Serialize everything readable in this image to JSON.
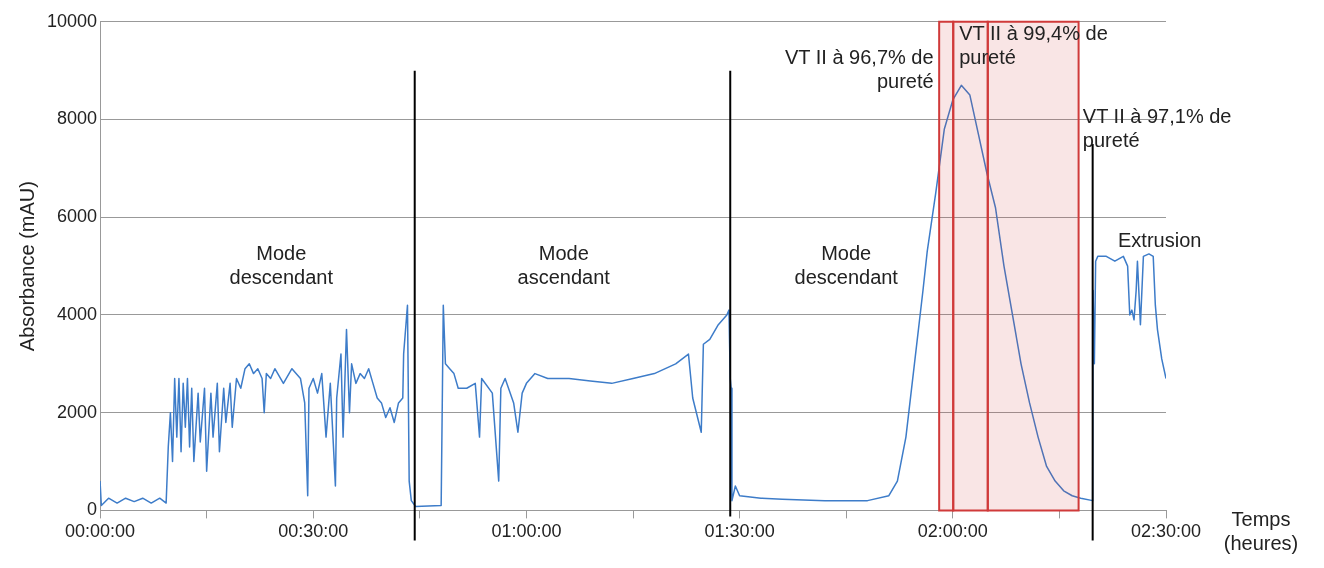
{
  "chart_data": {
    "type": "line",
    "xlabel": "Temps\n(heures)",
    "ylabel": "Absorbance (mAU)",
    "x": [
      0,
      0.003,
      0.02,
      0.04,
      0.06,
      0.08,
      0.1,
      0.12,
      0.14,
      0.155,
      0.16,
      0.165,
      0.17,
      0.175,
      0.18,
      0.185,
      0.19,
      0.195,
      0.2,
      0.205,
      0.21,
      0.215,
      0.22,
      0.23,
      0.235,
      0.245,
      0.25,
      0.26,
      0.265,
      0.275,
      0.28,
      0.29,
      0.295,
      0.305,
      0.31,
      0.32,
      0.33,
      0.34,
      0.35,
      0.36,
      0.37,
      0.38,
      0.385,
      0.39,
      0.4,
      0.41,
      0.43,
      0.45,
      0.47,
      0.48,
      0.487,
      0.49,
      0.5,
      0.51,
      0.52,
      0.53,
      0.54,
      0.552,
      0.555,
      0.565,
      0.57,
      0.578,
      0.585,
      0.59,
      0.6,
      0.61,
      0.62,
      0.63,
      0.64,
      0.65,
      0.66,
      0.67,
      0.68,
      0.69,
      0.7,
      0.71,
      0.712,
      0.721,
      0.725,
      0.73,
      0.74,
      0.8,
      0.803,
      0.805,
      0.81,
      0.82,
      0.83,
      0.84,
      0.86,
      0.88,
      0.89,
      0.895,
      0.92,
      0.935,
      0.94,
      0.95,
      0.97,
      0.98,
      0.99,
      1,
      1.02,
      1.05,
      1.1,
      1.15,
      1.2,
      1.25,
      1.3,
      1.35,
      1.38,
      1.39,
      1.41,
      1.415,
      1.43,
      1.45,
      1.47,
      1.475,
      1.478,
      1.48,
      1.482,
      1.49,
      1.5,
      1.55,
      1.6,
      1.7,
      1.8,
      1.85,
      1.87,
      1.89,
      1.91,
      1.93,
      1.94,
      1.96,
      1.98,
      2,
      2.02,
      2.04,
      2.06,
      2.08,
      2.1,
      2.12,
      2.14,
      2.16,
      2.18,
      2.2,
      2.22,
      2.24,
      2.26,
      2.28,
      2.3,
      2.328,
      2.329,
      2.332,
      2.335,
      2.34,
      2.36,
      2.38,
      2.4,
      2.41,
      2.415,
      2.42,
      2.425,
      2.43,
      2.433,
      2.44,
      2.447,
      2.46,
      2.47,
      2.475,
      2.48,
      2.49,
      2.5
    ],
    "series": [
      {
        "color": "#3d7cc9",
        "values": [
          600,
          100,
          250,
          150,
          250,
          180,
          250,
          150,
          250,
          150,
          1300,
          2000,
          1000,
          2700,
          1500,
          2700,
          1200,
          2600,
          1700,
          2700,
          1300,
          2500,
          1000,
          2400,
          1400,
          2500,
          800,
          2400,
          1500,
          2600,
          1200,
          2500,
          1800,
          2600,
          1700,
          2700,
          2500,
          2900,
          3000,
          2800,
          2900,
          2700,
          2000,
          2800,
          2700,
          2900,
          2600,
          2900,
          2700,
          2200,
          300,
          2500,
          2700,
          2400,
          2800,
          1500,
          2600,
          500,
          2300,
          3200,
          1500,
          3700,
          2000,
          3000,
          2600,
          2800,
          2700,
          2900,
          2600,
          2300,
          2200,
          1900,
          2100,
          1800,
          2200,
          2300,
          3200,
          4200,
          600,
          200,
          80,
          100,
          2500,
          4200,
          3000,
          2900,
          2800,
          2500,
          2500,
          2600,
          1500,
          2700,
          2400,
          600,
          2500,
          2700,
          2200,
          1600,
          2400,
          2600,
          2800,
          2700,
          2700,
          2650,
          2600,
          2700,
          2800,
          3000,
          3200,
          2300,
          1600,
          3400,
          3500,
          3800,
          4000,
          4100,
          2700,
          2500,
          200,
          500,
          300,
          250,
          230,
          200,
          200,
          300,
          600,
          1500,
          3000,
          4500,
          5300,
          6500,
          7800,
          8400,
          8700,
          8500,
          7700,
          6900,
          6200,
          5000,
          4000,
          3000,
          2200,
          1500,
          900,
          600,
          400,
          300,
          250,
          200,
          4500,
          3000,
          5100,
          5200,
          5200,
          5100,
          5200,
          5000,
          4000,
          4100,
          3900,
          4500,
          5100,
          3800,
          5200,
          5250,
          5200,
          4200,
          3700,
          3100,
          2700
        ]
      }
    ],
    "xlim": [
      0,
      2.5
    ],
    "xticks": [
      {
        "value": 0,
        "label": "00:00:00"
      },
      {
        "value": 0.25,
        "label": null
      },
      {
        "value": 0.5,
        "label": "00:30:00"
      },
      {
        "value": 0.75,
        "label": null
      },
      {
        "value": 1,
        "label": "01:00:00"
      },
      {
        "value": 1.25,
        "label": null
      },
      {
        "value": 1.5,
        "label": "01:30:00"
      },
      {
        "value": 1.75,
        "label": null
      },
      {
        "value": 2,
        "label": "02:00:00"
      },
      {
        "value": 2.25,
        "label": null
      },
      {
        "value": 2.5,
        "label": "02:30:00"
      }
    ],
    "ylim": [
      0,
      10000
    ],
    "yticks": [
      0,
      2000,
      4000,
      6000,
      8000,
      10000
    ],
    "grid": "y",
    "legend": false,
    "marker": "none",
    "line_style": "solid",
    "ref_lines": [
      {
        "axis": "x",
        "value": 0.738,
        "label": null,
        "color": "#000000"
      },
      {
        "axis": "x",
        "value": 1.478,
        "label": null,
        "color": "#000000"
      },
      {
        "axis": "x",
        "value": 2.328,
        "label": null,
        "color": "#000000"
      }
    ],
    "bands": [
      {
        "axis": "x",
        "from": 1.968,
        "to": 2.001,
        "label": null,
        "color": "#d03a3a"
      },
      {
        "axis": "x",
        "from": 2.001,
        "to": 2.082,
        "label": null,
        "color": "#d03a3a"
      },
      {
        "axis": "x",
        "from": 2.082,
        "to": 2.295,
        "label": null,
        "color": "#d03a3a"
      }
    ],
    "annotations": [
      "Mode\ndescendant",
      "Mode\nascendant",
      "Mode\ndescendant",
      "Extrusion",
      "VT II à 96,7% de\npureté",
      "VT II à 99,4% de\npureté",
      "VT II à 97,1% de\npureté"
    ]
  }
}
